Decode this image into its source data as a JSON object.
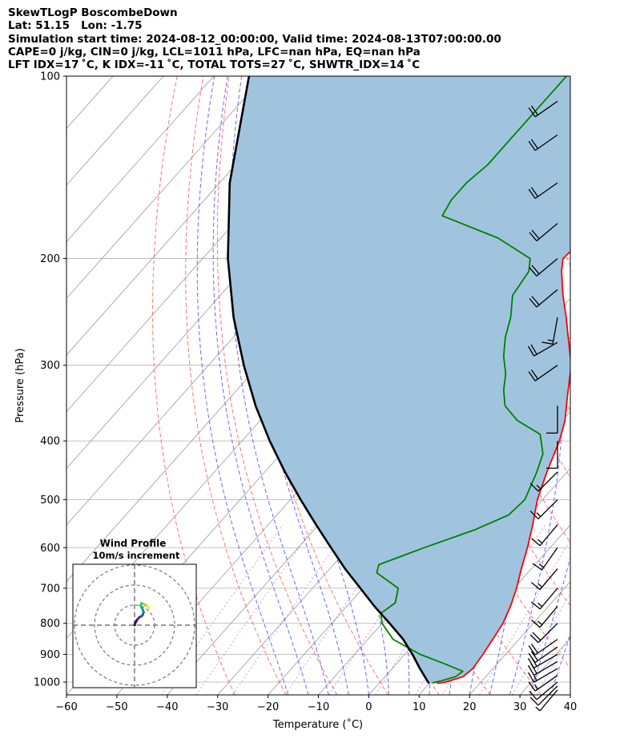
{
  "header": {
    "line1": "SkewTLogP BoscombeDown",
    "line2": "Lat: 51.15   Lon: -1.75",
    "line3": "Simulation start time: 2024-08-12_00:00:00, Valid time: 2024-08-13T07:00:00.00",
    "line4": "CAPE=0 j/kg, CIN=0 j/kg, LCL=1011 hPa, LFC=nan hPa, EQ=nan hPa",
    "line5": "LFT IDX=17 ˚C, K IDX=-11 ˚C, TOTAL TOTS=27 ˚C, SHWTR_IDX=14 ˚C"
  },
  "chart_data": {
    "type": "line",
    "subtype": "skew-T log-P diagram",
    "xlabel": "Temperature (˚C)",
    "ylabel": "Pressure (hPa)",
    "xlim": [
      -60,
      40
    ],
    "ylim": [
      1050,
      100
    ],
    "y_scale": "log",
    "x_ticks": [
      "−60",
      "−50",
      "−40",
      "−30",
      "−20",
      "−10",
      "0",
      "10",
      "20",
      "30",
      "40"
    ],
    "x_tick_values": [
      -60,
      -50,
      -40,
      -30,
      -20,
      -10,
      0,
      10,
      20,
      30,
      40
    ],
    "y_ticks": [
      "1000",
      "900",
      "800",
      "700",
      "600",
      "500",
      "400",
      "300",
      "200",
      "100"
    ],
    "y_tick_values": [
      1000,
      900,
      800,
      700,
      600,
      500,
      400,
      300,
      200,
      100
    ],
    "grid": true,
    "series": [
      {
        "role": "temperature",
        "color": "#ff0000",
        "p": [
          1005,
          1000,
          980,
          950,
          900,
          850,
          800,
          750,
          700,
          650,
          600,
          550,
          500,
          450,
          400,
          370,
          340,
          300,
          270,
          250,
          230,
          210,
          200,
          190,
          180,
          170,
          160,
          150,
          140,
          130,
          120,
          110,
          100
        ],
        "t": [
          11.5,
          13,
          15.5,
          16,
          15.5,
          14.8,
          14,
          12.5,
          10.5,
          8,
          5.5,
          2.5,
          -1,
          -4,
          -7,
          -9.5,
          -13,
          -18,
          -23.5,
          -27.5,
          -32,
          -36.5,
          -38.5,
          -38,
          -36,
          -35.5,
          -37,
          -40,
          -43,
          -46,
          -48.5,
          -51.5,
          -55
        ]
      },
      {
        "role": "dewpoint",
        "color": "#008000",
        "p": [
          1003,
          995,
          980,
          960,
          930,
          900,
          850,
          800,
          770,
          740,
          700,
          660,
          640,
          600,
          560,
          530,
          500,
          450,
          420,
          390,
          370,
          350,
          330,
          310,
          290,
          270,
          250,
          230,
          210,
          200,
          185,
          170,
          160,
          150,
          140,
          130,
          120,
          110,
          100
        ],
        "t": [
          10.5,
          12,
          14,
          14.5,
          9,
          3,
          -5,
          -10,
          -12,
          -11,
          -13,
          -20,
          -21,
          -15,
          -8,
          -4,
          -3.5,
          -6,
          -8,
          -12,
          -19,
          -24,
          -27,
          -29.5,
          -33,
          -36,
          -38.5,
          -42,
          -43,
          -45,
          -55,
          -70,
          -71,
          -71,
          -70,
          -70,
          -70,
          -70,
          -70
        ]
      },
      {
        "role": "parcel",
        "color": "#000000",
        "p": [
          1005,
          1000,
          950,
          900,
          850,
          800,
          750,
          700,
          650,
          600,
          550,
          500,
          450,
          400,
          350,
          300,
          250,
          200,
          150,
          100
        ],
        "t": [
          10,
          9.5,
          5.5,
          1.5,
          -3,
          -8.5,
          -14.5,
          -20.5,
          -27,
          -33.5,
          -40.5,
          -48,
          -56,
          -64.5,
          -73.5,
          -83,
          -93.5,
          -105,
          -118,
          -133
        ]
      }
    ],
    "cape_cin_fill_color": "#a1c4de",
    "wind_barbs": {
      "p": [
        1030,
        1015,
        1000,
        975,
        950,
        925,
        900,
        875,
        850,
        800,
        750,
        700,
        650,
        600,
        550,
        500,
        450,
        400,
        350,
        300,
        275,
        250,
        225,
        200,
        175,
        150,
        125,
        110
      ],
      "speed_kt": [
        5,
        10,
        10,
        15,
        15,
        20,
        20,
        20,
        20,
        20,
        15,
        15,
        15,
        15,
        15,
        15,
        15,
        10,
        10,
        20,
        20,
        15,
        20,
        20,
        20,
        20,
        20,
        20
      ],
      "dir_deg": [
        220,
        225,
        230,
        235,
        240,
        240,
        240,
        235,
        235,
        225,
        220,
        220,
        220,
        215,
        220,
        225,
        225,
        180,
        180,
        235,
        240,
        190,
        230,
        230,
        230,
        235,
        235,
        235
      ]
    },
    "inset": {
      "title": "Wind Profile",
      "subtitle": "10m/s increment",
      "ring_count": 3,
      "hodograph_u": [
        0,
        0.5,
        1.5,
        2.5,
        3.5,
        4,
        4.5,
        4,
        3.5,
        3,
        3.5,
        4.5,
        5.5,
        6.5,
        7
      ],
      "hodograph_v": [
        0,
        1.5,
        3,
        4,
        4.5,
        5,
        6.5,
        8,
        9,
        10,
        11,
        10.5,
        10,
        9.5,
        8.5
      ]
    }
  }
}
